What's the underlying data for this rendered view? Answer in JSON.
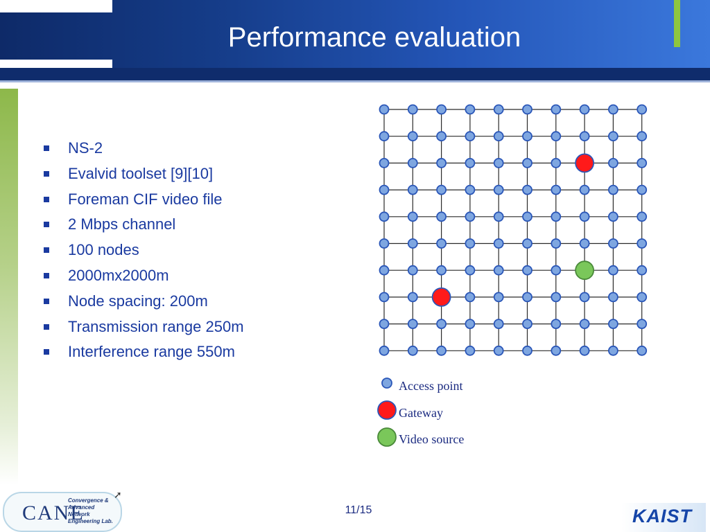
{
  "slide": {
    "title": "Performance evaluation",
    "page_number": "11/15"
  },
  "bullets": [
    "NS-2",
    "Evalvid toolset [9][10]",
    "Foreman CIF video file",
    "2 Mbps channel",
    "100 nodes",
    "2000mx2000m",
    "Node spacing: 200m",
    "Transmission range 250m",
    "Interference range 550m"
  ],
  "grid": {
    "rows": 10,
    "cols": 10,
    "gateways": [
      [
        2,
        7
      ],
      [
        7,
        2
      ]
    ],
    "video_sources": [
      [
        6,
        7
      ]
    ]
  },
  "legend": {
    "access_point": "Access point",
    "gateway": "Gateway",
    "video_source": "Video source"
  },
  "logo": {
    "letters": "CANE",
    "lines": [
      "Convergence &",
      "Advanced",
      "Network",
      "Engineering Lab."
    ]
  },
  "footer_logo": "KAIST",
  "colors": {
    "node": "#7ea6e0",
    "node_stroke": "#2a56b8",
    "gateway": "#ff1a1a",
    "video_source": "#7ac75a",
    "text": "#1a3aa0"
  }
}
